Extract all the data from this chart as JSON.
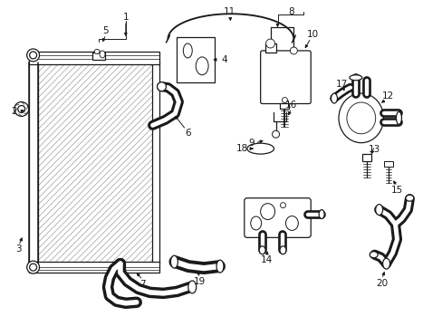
{
  "bg_color": "#ffffff",
  "line_color": "#1a1a1a",
  "fig_width": 4.89,
  "fig_height": 3.6,
  "dpi": 100,
  "label_fs": 7.5,
  "lw": 0.9
}
